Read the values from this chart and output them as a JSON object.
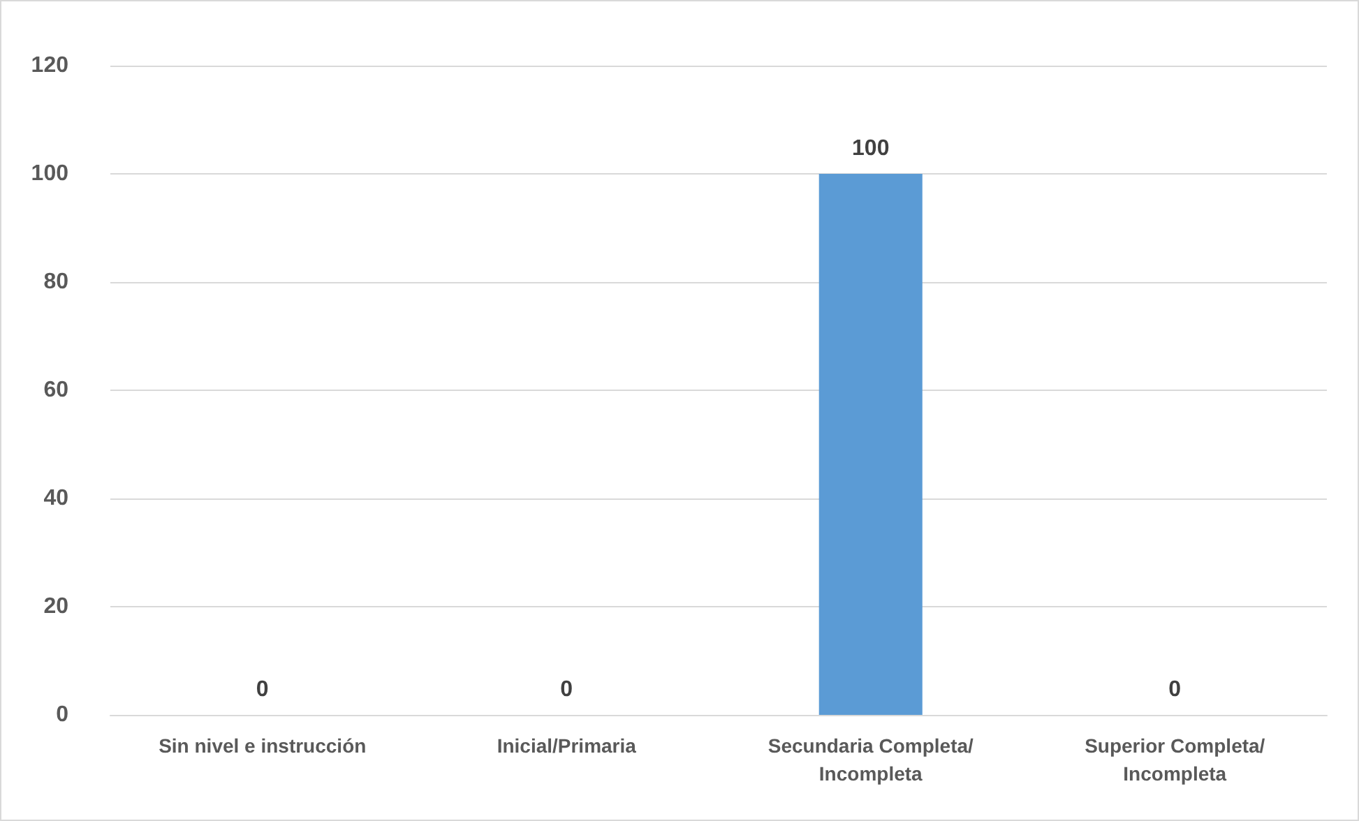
{
  "chart_data": {
    "type": "bar",
    "categories": [
      "Sin nivel e instrucción",
      "Inicial/Primaria",
      "Secundaria Completa/Incompleta",
      "Superior Completa/Incompleta"
    ],
    "values": [
      0,
      0,
      100,
      0
    ],
    "color": "#5b9bd5",
    "ylim": [
      0,
      120
    ],
    "yticks": [
      0,
      20,
      40,
      60,
      80,
      100,
      120
    ],
    "grid": "y",
    "data_labels": true
  }
}
